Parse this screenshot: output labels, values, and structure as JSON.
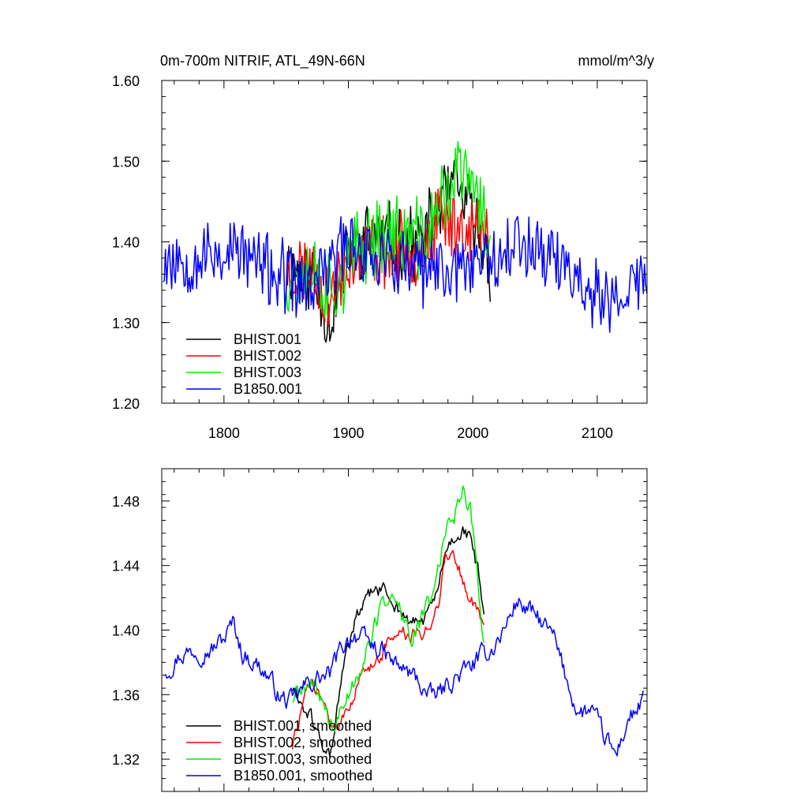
{
  "chart_data": [
    {
      "type": "line",
      "title": "0m-700m NITRIF, ATL_49N-66N",
      "units": "mmol/m^3/y",
      "xlim": [
        1750,
        2140
      ],
      "ylim": [
        1.2,
        1.6
      ],
      "x_ticks": [
        1800,
        1900,
        2000,
        2100
      ],
      "x_tick_labels": [
        "1800",
        "1900",
        "2000",
        "2100"
      ],
      "y_ticks": [
        1.2,
        1.3,
        1.4,
        1.5,
        1.6
      ],
      "y_tick_labels": [
        "1.20",
        "1.30",
        "1.40",
        "1.50",
        "1.60"
      ],
      "legend_position": "bottom-left",
      "series": [
        {
          "name": "BHIST.001",
          "color": "#000000",
          "x_range": [
            1850,
            2014
          ],
          "pattern": "noisy",
          "anchors": [
            [
              1850,
              1.37
            ],
            [
              1870,
              1.36
            ],
            [
              1885,
              1.3
            ],
            [
              1900,
              1.39
            ],
            [
              1920,
              1.41
            ],
            [
              1940,
              1.4
            ],
            [
              1960,
              1.4
            ],
            [
              1975,
              1.45
            ],
            [
              1985,
              1.47
            ],
            [
              2000,
              1.43
            ],
            [
              2014,
              1.37
            ]
          ],
          "noise": 0.04,
          "seed": 11
        },
        {
          "name": "BHIST.002",
          "color": "#ff0000",
          "x_range": [
            1850,
            2014
          ],
          "pattern": "noisy",
          "anchors": [
            [
              1850,
              1.36
            ],
            [
              1870,
              1.37
            ],
            [
              1885,
              1.33
            ],
            [
              1900,
              1.38
            ],
            [
              1920,
              1.39
            ],
            [
              1940,
              1.39
            ],
            [
              1960,
              1.39
            ],
            [
              1975,
              1.43
            ],
            [
              1985,
              1.42
            ],
            [
              2000,
              1.42
            ],
            [
              2014,
              1.4
            ]
          ],
          "noise": 0.04,
          "seed": 23
        },
        {
          "name": "BHIST.003",
          "color": "#00ee00",
          "x_range": [
            1850,
            2014
          ],
          "pattern": "noisy",
          "anchors": [
            [
              1850,
              1.36
            ],
            [
              1870,
              1.37
            ],
            [
              1885,
              1.34
            ],
            [
              1900,
              1.37
            ],
            [
              1920,
              1.41
            ],
            [
              1940,
              1.41
            ],
            [
              1960,
              1.4
            ],
            [
              1975,
              1.45
            ],
            [
              1990,
              1.49
            ],
            [
              2005,
              1.45
            ],
            [
              2014,
              1.4
            ]
          ],
          "noise": 0.045,
          "seed": 37
        },
        {
          "name": "B1850.001",
          "color": "#0000ff",
          "x_range": [
            1751,
            2140
          ],
          "pattern": "noisy",
          "anchors": [
            [
              1751,
              1.38
            ],
            [
              1780,
              1.38
            ],
            [
              1810,
              1.39
            ],
            [
              1840,
              1.36
            ],
            [
              1870,
              1.34
            ],
            [
              1900,
              1.4
            ],
            [
              1930,
              1.38
            ],
            [
              1960,
              1.36
            ],
            [
              1990,
              1.37
            ],
            [
              2020,
              1.39
            ],
            [
              2050,
              1.4
            ],
            [
              2080,
              1.36
            ],
            [
              2110,
              1.32
            ],
            [
              2140,
              1.36
            ]
          ],
          "noise": 0.04,
          "seed": 53
        }
      ]
    },
    {
      "type": "line",
      "title": "",
      "xlim": [
        1750,
        2140
      ],
      "ylim": [
        1.3,
        1.5
      ],
      "x_ticks": [
        1800,
        1900,
        2000,
        2100
      ],
      "y_ticks": [
        1.32,
        1.36,
        1.4,
        1.44,
        1.48
      ],
      "y_tick_labels": [
        "1.32",
        "1.36",
        "1.40",
        "1.44",
        "1.48"
      ],
      "legend_position": "bottom-left",
      "series": [
        {
          "name": "BHIST.001, smoothed",
          "color": "#000000",
          "x_range": [
            1855,
            2009
          ],
          "pattern": "smooth",
          "anchors": [
            [
              1855,
              1.364
            ],
            [
              1862,
              1.355
            ],
            [
              1870,
              1.345
            ],
            [
              1878,
              1.33
            ],
            [
              1885,
              1.322
            ],
            [
              1890,
              1.345
            ],
            [
              1897,
              1.38
            ],
            [
              1905,
              1.405
            ],
            [
              1912,
              1.415
            ],
            [
              1920,
              1.424
            ],
            [
              1928,
              1.425
            ],
            [
              1935,
              1.418
            ],
            [
              1942,
              1.412
            ],
            [
              1950,
              1.403
            ],
            [
              1957,
              1.405
            ],
            [
              1965,
              1.41
            ],
            [
              1972,
              1.425
            ],
            [
              1978,
              1.448
            ],
            [
              1985,
              1.458
            ],
            [
              1992,
              1.462
            ],
            [
              1998,
              1.455
            ],
            [
              2004,
              1.438
            ],
            [
              2009,
              1.405
            ]
          ],
          "noise": 0.004,
          "seed": 61
        },
        {
          "name": "BHIST.002, smoothed",
          "color": "#ff0000",
          "x_range": [
            1855,
            2009
          ],
          "pattern": "smooth",
          "anchors": [
            [
              1855,
              1.328
            ],
            [
              1862,
              1.35
            ],
            [
              1870,
              1.366
            ],
            [
              1878,
              1.358
            ],
            [
              1885,
              1.345
            ],
            [
              1890,
              1.335
            ],
            [
              1897,
              1.352
            ],
            [
              1905,
              1.362
            ],
            [
              1912,
              1.372
            ],
            [
              1920,
              1.38
            ],
            [
              1928,
              1.388
            ],
            [
              1935,
              1.395
            ],
            [
              1942,
              1.4
            ],
            [
              1950,
              1.395
            ],
            [
              1957,
              1.397
            ],
            [
              1965,
              1.402
            ],
            [
              1972,
              1.418
            ],
            [
              1978,
              1.445
            ],
            [
              1985,
              1.448
            ],
            [
              1992,
              1.43
            ],
            [
              1998,
              1.42
            ],
            [
              2004,
              1.412
            ],
            [
              2009,
              1.4
            ]
          ],
          "noise": 0.004,
          "seed": 73
        },
        {
          "name": "BHIST.003, smoothed",
          "color": "#00ee00",
          "x_range": [
            1855,
            2009
          ],
          "pattern": "smooth",
          "anchors": [
            [
              1855,
              1.358
            ],
            [
              1862,
              1.362
            ],
            [
              1870,
              1.365
            ],
            [
              1878,
              1.36
            ],
            [
              1885,
              1.342
            ],
            [
              1890,
              1.34
            ],
            [
              1897,
              1.355
            ],
            [
              1905,
              1.37
            ],
            [
              1912,
              1.38
            ],
            [
              1920,
              1.4
            ],
            [
              1928,
              1.418
            ],
            [
              1935,
              1.42
            ],
            [
              1942,
              1.412
            ],
            [
              1950,
              1.395
            ],
            [
              1957,
              1.402
            ],
            [
              1965,
              1.418
            ],
            [
              1972,
              1.438
            ],
            [
              1978,
              1.462
            ],
            [
              1985,
              1.472
            ],
            [
              1992,
              1.49
            ],
            [
              1998,
              1.475
            ],
            [
              2004,
              1.43
            ],
            [
              2009,
              1.395
            ]
          ],
          "noise": 0.005,
          "seed": 89
        },
        {
          "name": "B1850.001, smoothed",
          "color": "#0000ff",
          "x_range": [
            1753,
            2137
          ],
          "pattern": "smooth",
          "anchors": [
            [
              1753,
              1.375
            ],
            [
              1765,
              1.385
            ],
            [
              1778,
              1.388
            ],
            [
              1790,
              1.388
            ],
            [
              1800,
              1.395
            ],
            [
              1808,
              1.405
            ],
            [
              1815,
              1.385
            ],
            [
              1825,
              1.38
            ],
            [
              1835,
              1.372
            ],
            [
              1845,
              1.358
            ],
            [
              1855,
              1.355
            ],
            [
              1865,
              1.365
            ],
            [
              1875,
              1.37
            ],
            [
              1885,
              1.372
            ],
            [
              1895,
              1.39
            ],
            [
              1905,
              1.398
            ],
            [
              1915,
              1.392
            ],
            [
              1925,
              1.388
            ],
            [
              1935,
              1.38
            ],
            [
              1945,
              1.375
            ],
            [
              1955,
              1.37
            ],
            [
              1965,
              1.358
            ],
            [
              1975,
              1.362
            ],
            [
              1985,
              1.37
            ],
            [
              1995,
              1.375
            ],
            [
              2005,
              1.382
            ],
            [
              2015,
              1.388
            ],
            [
              2025,
              1.4
            ],
            [
              2035,
              1.418
            ],
            [
              2045,
              1.412
            ],
            [
              2055,
              1.405
            ],
            [
              2065,
              1.395
            ],
            [
              2075,
              1.37
            ],
            [
              2085,
              1.348
            ],
            [
              2095,
              1.35
            ],
            [
              2105,
              1.335
            ],
            [
              2115,
              1.322
            ],
            [
              2125,
              1.345
            ],
            [
              2137,
              1.355
            ]
          ],
          "noise": 0.005,
          "seed": 97
        }
      ]
    }
  ]
}
